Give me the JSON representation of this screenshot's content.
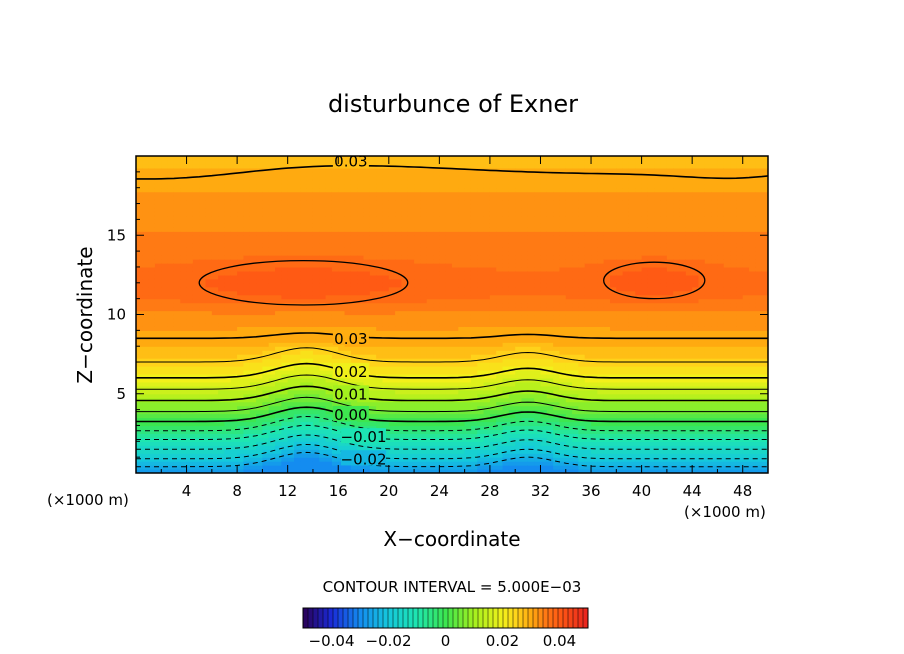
{
  "chart_data": {
    "type": "heatmap",
    "title": "disturbunce of Exner",
    "xlabel": "X−coordinate",
    "ylabel": "Z−coordinate",
    "x_unit": "(×1000 m)",
    "z_unit": "(×1000 m)",
    "xlim": [
      0,
      50
    ],
    "ylim": [
      0,
      20
    ],
    "x_ticks": [
      4,
      8,
      12,
      16,
      20,
      24,
      28,
      32,
      36,
      40,
      44,
      48
    ],
    "x_tick_labels": [
      "4",
      "8",
      "12",
      "16",
      "20",
      "24",
      "28",
      "32",
      "36",
      "40",
      "44",
      "48"
    ],
    "y_ticks": [
      5,
      10,
      15
    ],
    "y_tick_labels": [
      "5",
      "10",
      "15"
    ],
    "contour_interval_text": "CONTOUR INTERVAL = 5.000E−03",
    "contour_labels": [
      {
        "text": "0.03",
        "x": 17,
        "z": 19.6
      },
      {
        "text": "0.03",
        "x": 17,
        "z": 8.4
      },
      {
        "text": "0.02",
        "x": 17,
        "z": 6.3
      },
      {
        "text": "0.01",
        "x": 17,
        "z": 4.9
      },
      {
        "text": "0.00",
        "x": 17,
        "z": 3.6
      },
      {
        "text": "−0.01",
        "x": 18,
        "z": 2.2
      },
      {
        "text": "−0.02",
        "x": 18,
        "z": 0.8
      }
    ],
    "value_range": [
      -0.05,
      0.05
    ],
    "colorbar_ticks": [
      -0.04,
      -0.02,
      0,
      0.02,
      0.04
    ],
    "colorbar_tick_labels": [
      "−0.04",
      "−0.02",
      "0",
      "0.02",
      "0.04"
    ],
    "field_profile": {
      "z": [
        0,
        1,
        2,
        3,
        4,
        5,
        6,
        7,
        8,
        9,
        10,
        11,
        12,
        13,
        14,
        15,
        16,
        17,
        18,
        19,
        20
      ],
      "value": [
        -0.029,
        -0.019,
        -0.011,
        -0.002,
        0.006,
        0.013,
        0.02,
        0.025,
        0.029,
        0.031,
        0.033,
        0.036,
        0.037,
        0.036,
        0.035,
        0.034,
        0.033,
        0.032,
        0.031,
        0.029,
        0.027
      ]
    },
    "closed_contours": [
      {
        "value": 0.035,
        "x_range": [
          5,
          21.5
        ],
        "z_range": [
          10.6,
          13.4
        ]
      },
      {
        "value": 0.035,
        "x_range": [
          37,
          45
        ],
        "z_range": [
          11.0,
          13.3
        ]
      }
    ]
  }
}
